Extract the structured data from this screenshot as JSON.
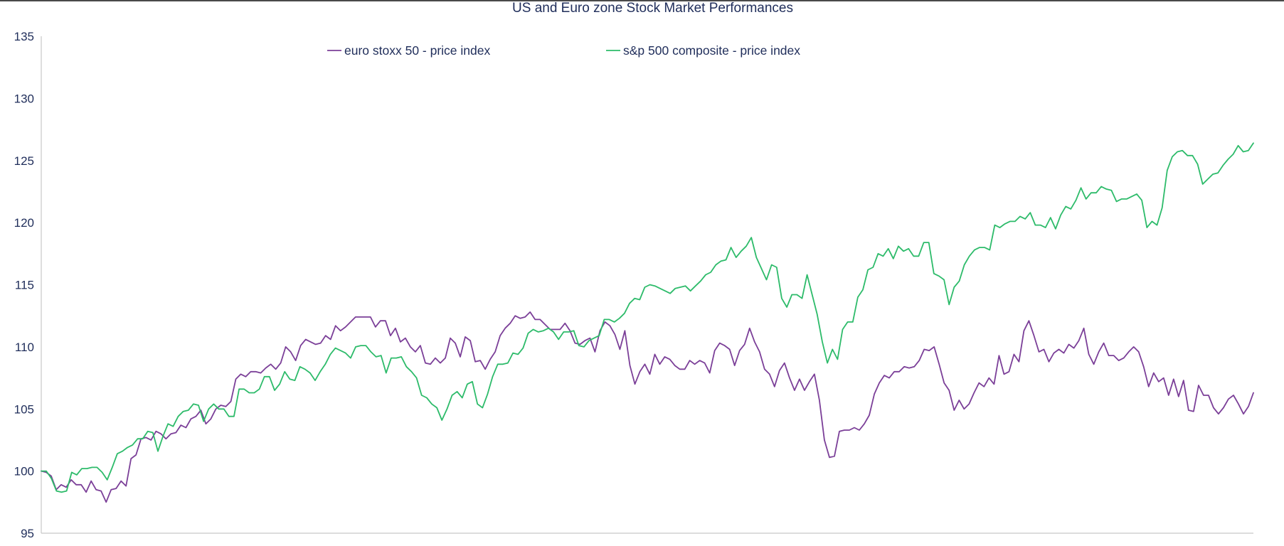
{
  "chart_data": {
    "type": "line",
    "title": "US and Euro zone Stock Market Performances",
    "xlabel": "",
    "ylabel": "",
    "ylim": [
      95,
      135
    ],
    "yticks": [
      95,
      100,
      105,
      110,
      115,
      120,
      125,
      130,
      135
    ],
    "grid": false,
    "legend_position": "top-center",
    "colors": {
      "title": "#1f2d5a",
      "axis": "#c8c8c8",
      "tick_text": "#1f2d5a"
    },
    "series": [
      {
        "name": "euro stoxx 50 - price index",
        "color": "#7b3f98",
        "values": [
          100,
          99.9,
          99.6,
          98.5,
          98.9,
          98.7,
          99.3,
          98.9,
          98.9,
          98.3,
          99.2,
          98.5,
          98.4,
          97.5,
          98.5,
          98.6,
          99.2,
          98.8,
          101.0,
          101.3,
          102.6,
          102.7,
          102.5,
          103.2,
          103.0,
          102.6,
          103.0,
          103.1,
          103.7,
          103.5,
          104.2,
          104.4,
          104.9,
          103.8,
          104.2,
          105.0,
          105.3,
          105.2,
          105.6,
          107.4,
          107.8,
          107.6,
          108.0,
          108.0,
          107.9,
          108.3,
          108.6,
          108.2,
          108.7,
          110.0,
          109.6,
          108.9,
          110.1,
          110.6,
          110.4,
          110.2,
          110.3,
          110.9,
          110.6,
          111.7,
          111.3,
          111.6,
          112.0,
          112.4,
          112.4,
          112.4,
          112.4,
          111.6,
          112.1,
          112.1,
          110.9,
          111.5,
          110.4,
          110.7,
          110.0,
          109.6,
          110.1,
          108.7,
          108.6,
          109.1,
          108.7,
          109.1,
          110.7,
          110.3,
          109.2,
          110.8,
          110.5,
          108.8,
          108.9,
          108.2,
          109.0,
          109.6,
          110.9,
          111.5,
          111.9,
          112.5,
          112.3,
          112.4,
          112.8,
          112.2,
          112.2,
          111.8,
          111.4,
          111.4,
          111.4,
          111.9,
          111.3,
          110.3,
          110.2,
          110.5,
          110.7,
          109.6,
          111.3,
          112.0,
          111.7,
          111.0,
          109.8,
          111.3,
          108.5,
          107.0,
          108.0,
          108.6,
          107.8,
          109.4,
          108.6,
          109.2,
          109.0,
          108.5,
          108.2,
          108.2,
          108.9,
          108.6,
          108.9,
          108.7,
          107.9,
          109.7,
          110.3,
          110.1,
          109.8,
          108.5,
          109.7,
          110.2,
          111.5,
          110.4,
          109.6,
          108.2,
          107.8,
          106.8,
          108.1,
          108.7,
          107.5,
          106.5,
          107.4,
          106.5,
          107.2,
          107.8,
          105.7,
          102.5,
          101.1,
          101.2,
          103.2,
          103.3,
          103.3,
          103.5,
          103.3,
          103.8,
          104.5,
          106.2,
          107.1,
          107.7,
          107.5,
          108.0,
          108.0,
          108.4,
          108.3,
          108.4,
          108.9,
          109.8,
          109.7,
          110.0,
          108.6,
          107.1,
          106.5,
          104.9,
          105.7,
          105.0,
          105.4,
          106.3,
          107.1,
          106.8,
          107.5,
          107.0,
          109.3,
          107.8,
          108.0,
          109.4,
          108.8,
          111.3,
          112.1,
          110.9,
          109.6,
          109.8,
          108.8,
          109.5,
          109.8,
          109.5,
          110.2,
          109.9,
          110.5,
          111.5,
          109.4,
          108.6,
          109.6,
          110.3,
          109.3,
          109.3,
          108.9,
          109.1,
          109.6,
          110.0,
          109.6,
          108.4,
          106.8,
          107.9,
          107.2,
          107.5,
          106.1,
          107.4,
          106.0,
          107.3,
          104.9,
          104.8,
          106.9,
          106.1,
          106.1,
          105.1,
          104.6,
          105.1,
          105.8,
          106.1,
          105.4,
          104.6,
          105.2,
          106.3
        ]
      },
      {
        "name": "s&p 500 composite - price index",
        "color": "#2dbb6a",
        "values": [
          100,
          100.0,
          99.4,
          98.4,
          98.3,
          98.4,
          99.9,
          99.7,
          100.2,
          100.2,
          100.3,
          100.3,
          99.9,
          99.3,
          100.3,
          101.4,
          101.6,
          101.9,
          102.1,
          102.6,
          102.6,
          103.2,
          103.1,
          101.6,
          102.8,
          103.8,
          103.6,
          104.4,
          104.8,
          104.9,
          105.4,
          105.3,
          104.0,
          105.0,
          105.4,
          105.0,
          105.0,
          104.4,
          104.4,
          106.6,
          106.6,
          106.3,
          106.3,
          106.6,
          107.6,
          107.6,
          106.5,
          107.0,
          108.0,
          107.4,
          107.3,
          108.4,
          108.2,
          107.9,
          107.3,
          108.0,
          108.6,
          109.4,
          109.9,
          109.7,
          109.5,
          109.1,
          110.0,
          110.1,
          110.1,
          109.6,
          109.2,
          109.3,
          107.9,
          109.1,
          109.1,
          109.2,
          108.4,
          108.0,
          107.5,
          106.1,
          105.9,
          105.4,
          105.1,
          104.1,
          105.0,
          106.1,
          106.4,
          105.9,
          107.0,
          107.2,
          105.4,
          105.1,
          106.2,
          107.6,
          108.6,
          108.6,
          108.7,
          109.5,
          109.4,
          109.9,
          111.1,
          111.4,
          111.2,
          111.3,
          111.5,
          111.2,
          110.6,
          111.2,
          111.2,
          111.3,
          110.1,
          110.0,
          110.5,
          110.7,
          110.9,
          112.2,
          112.2,
          112.0,
          112.3,
          112.7,
          113.5,
          113.9,
          113.8,
          114.8,
          115.0,
          114.9,
          114.7,
          114.5,
          114.3,
          114.7,
          114.8,
          114.9,
          114.5,
          114.9,
          115.3,
          115.8,
          116.0,
          116.6,
          116.9,
          117.0,
          118.0,
          117.2,
          117.7,
          118.1,
          118.8,
          117.2,
          116.3,
          115.4,
          116.6,
          116.4,
          113.9,
          113.2,
          114.2,
          114.2,
          113.9,
          115.8,
          114.2,
          112.6,
          110.4,
          108.7,
          109.8,
          109.0,
          111.4,
          112.0,
          112.0,
          114.0,
          114.6,
          116.2,
          116.4,
          117.5,
          117.3,
          117.9,
          117.1,
          118.1,
          117.7,
          117.9,
          117.3,
          117.3,
          118.4,
          118.4,
          115.9,
          115.7,
          115.4,
          113.4,
          114.8,
          115.3,
          116.6,
          117.3,
          117.8,
          118.0,
          118.0,
          117.8,
          119.8,
          119.6,
          119.9,
          120.1,
          120.1,
          120.5,
          120.3,
          120.8,
          119.8,
          119.8,
          119.6,
          120.4,
          119.5,
          120.6,
          121.3,
          121.1,
          121.8,
          122.8,
          121.9,
          122.4,
          122.4,
          122.9,
          122.7,
          122.6,
          121.7,
          121.9,
          121.9,
          122.1,
          122.3,
          121.8,
          119.6,
          120.1,
          119.8,
          121.2,
          124.2,
          125.3,
          125.7,
          125.8,
          125.4,
          125.4,
          124.7,
          123.1,
          123.5,
          123.9,
          124.0,
          124.6,
          125.1,
          125.5,
          126.2,
          125.7,
          125.8,
          126.4
        ]
      }
    ]
  }
}
